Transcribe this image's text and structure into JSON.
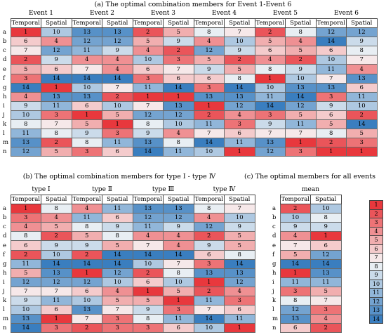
{
  "row_labels": [
    "a",
    "b",
    "c",
    "d",
    "e",
    "f",
    "g",
    "h",
    "i",
    "j",
    "k",
    "l",
    "m",
    "n"
  ],
  "sub_headers": {
    "temporal": "Temporal",
    "spatial": "Spatial"
  },
  "captions": {
    "a": "(a)  The optimal  combination members for  Event 1-Event 6",
    "b": "(b)  The optimal  combination members  for  type Ⅰ - type Ⅳ",
    "c": "(c) The optimal  members for all events"
  },
  "legend": {
    "values": [
      1,
      2,
      3,
      4,
      5,
      6,
      7,
      8,
      9,
      10,
      11,
      12,
      13,
      14
    ]
  },
  "colors": {
    "low": "#e8383d",
    "mid": "#f7f7f7",
    "high": "#3a7ebf"
  },
  "panel_a": {
    "groups": [
      {
        "label": "Event 1",
        "temporal": [
          1,
          6,
          7,
          2,
          5,
          3,
          14,
          4,
          9,
          10,
          8,
          11,
          13,
          12
        ],
        "spatial": [
          10,
          4,
          12,
          9,
          6,
          14,
          1,
          13,
          11,
          3,
          7,
          8,
          2,
          5
        ]
      },
      {
        "label": "Event 2",
        "temporal": [
          13,
          12,
          11,
          4,
          7,
          14,
          10,
          13,
          6,
          1,
          5,
          9,
          8,
          3
        ],
        "spatial": [
          13,
          12,
          9,
          4,
          4,
          14,
          7,
          2,
          10,
          5,
          1,
          3,
          11,
          6
        ]
      },
      {
        "label": "Event 3",
        "temporal": [
          2,
          5,
          4,
          10,
          6,
          3,
          11,
          1,
          7,
          12,
          8,
          9,
          13,
          14
        ],
        "spatial": [
          5,
          9,
          2,
          3,
          7,
          6,
          14,
          1,
          13,
          12,
          10,
          4,
          8,
          11
        ]
      },
      {
        "label": "Event  4",
        "temporal": [
          8,
          4,
          12,
          5,
          9,
          6,
          3,
          13,
          1,
          2,
          11,
          7,
          14,
          10
        ],
        "spatial": [
          7,
          10,
          9,
          2,
          5,
          8,
          14,
          13,
          12,
          4,
          3,
          6,
          11,
          1
        ]
      },
      {
        "label": "Event 5",
        "temporal": [
          2,
          5,
          6,
          4,
          8,
          1,
          10,
          11,
          14,
          3,
          9,
          7,
          13,
          12
        ],
        "spatial": [
          8,
          4,
          5,
          2,
          9,
          10,
          13,
          14,
          12,
          5,
          11,
          7,
          1,
          3
        ]
      },
      {
        "label": "Event  6",
        "temporal": [
          12,
          14,
          6,
          10,
          11,
          7,
          13,
          3,
          9,
          6,
          5,
          8,
          2,
          1
        ],
        "spatial": [
          12,
          9,
          8,
          7,
          4,
          13,
          6,
          11,
          10,
          2,
          14,
          5,
          3,
          1
        ]
      }
    ]
  },
  "panel_b": {
    "groups": [
      {
        "label": "type  Ⅰ",
        "temporal": [
          1,
          3,
          4,
          8,
          6,
          2,
          11,
          5,
          12,
          7,
          9,
          10,
          13,
          14
        ],
        "spatial": [
          8,
          4,
          5,
          2,
          9,
          10,
          14,
          13,
          12,
          7,
          11,
          6,
          1,
          3
        ]
      },
      {
        "label": "type  Ⅱ",
        "temporal": [
          4,
          11,
          8,
          5,
          9,
          2,
          14,
          1,
          12,
          6,
          10,
          13,
          7,
          2
        ],
        "spatial": [
          11,
          6,
          9,
          8,
          5,
          14,
          14,
          12,
          10,
          4,
          5,
          7,
          3,
          3
        ]
      },
      {
        "label": "type Ⅲ",
        "temporal": [
          13,
          12,
          11,
          4,
          7,
          14,
          10,
          2,
          6,
          1,
          5,
          9,
          8,
          3
        ],
        "spatial": [
          13,
          12,
          9,
          4,
          4,
          14,
          7,
          8,
          10,
          5,
          1,
          3,
          11,
          6
        ]
      },
      {
        "label": "type Ⅳ",
        "temporal": [
          8,
          4,
          12,
          2,
          9,
          6,
          3,
          13,
          1,
          2,
          11,
          7,
          14,
          10
        ],
        "spatial": [
          7,
          10,
          9,
          5,
          5,
          8,
          14,
          13,
          12,
          4,
          3,
          6,
          11,
          1
        ]
      }
    ]
  },
  "panel_c": {
    "groups": [
      {
        "label": "mean",
        "temporal": [
          2,
          10,
          9,
          4,
          7,
          5,
          14,
          1,
          11,
          3,
          8,
          12,
          13,
          6
        ],
        "spatial": [
          10,
          8,
          9,
          1,
          6,
          12,
          14,
          13,
          11,
          5,
          7,
          3,
          4,
          2
        ]
      }
    ]
  }
}
